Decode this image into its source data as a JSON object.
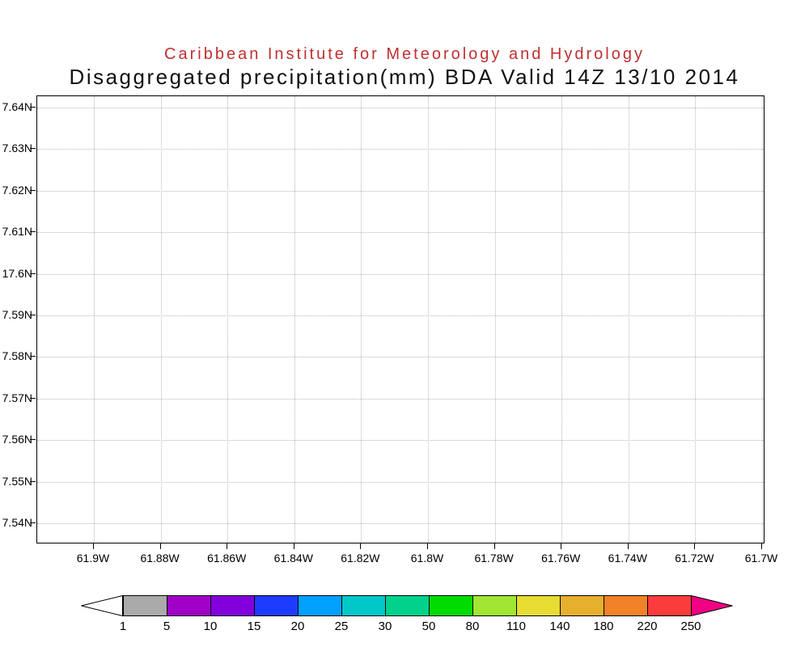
{
  "header": {
    "line1": "Caribbean Institute for Meteorology and Hydrology",
    "line2": "Disaggregated precipitation(mm) BDA Valid 14Z 13/10 2014"
  },
  "colors": {
    "title_line1": "#c03030",
    "title_line2": "#111111",
    "grid": "#b8b8b8",
    "axis": "#000000"
  },
  "chart_data": {
    "type": "heatmap",
    "title": "Caribbean Institute for Meteorology and Hydrology",
    "subtitle": "Disaggregated precipitation(mm) BDA Valid 14Z 13/10 2014",
    "field": "Disaggregated precipitation (mm)",
    "region": "BDA",
    "valid": "14Z 13/10 2014",
    "grid": true,
    "x_tick_labels": [
      "61.9W",
      "61.88W",
      "61.86W",
      "61.84W",
      "61.82W",
      "61.8W",
      "61.78W",
      "61.76W",
      "61.74W",
      "61.72W",
      "61.7W"
    ],
    "y_tick_labels": [
      "7.64N",
      "7.63N",
      "7.62N",
      "7.61N",
      "17.6N",
      "7.59N",
      "7.58N",
      "7.57N",
      "7.56N",
      "7.55N",
      "7.54N"
    ],
    "values": [],
    "colorbar": {
      "tick_labels": [
        "1",
        "5",
        "10",
        "15",
        "20",
        "25",
        "30",
        "50",
        "80",
        "110",
        "140",
        "180",
        "220",
        "250"
      ],
      "segment_colors": [
        "#aaaaaa",
        "#a000c8",
        "#8200dc",
        "#1e3cff",
        "#00a0ff",
        "#00c8c8",
        "#00d28c",
        "#00dc00",
        "#a0e632",
        "#e6dc32",
        "#e6af2d",
        "#f08228",
        "#fa3c3c"
      ],
      "under_arrow_color": "#ffffff",
      "over_arrow_color": "#f00082"
    }
  }
}
